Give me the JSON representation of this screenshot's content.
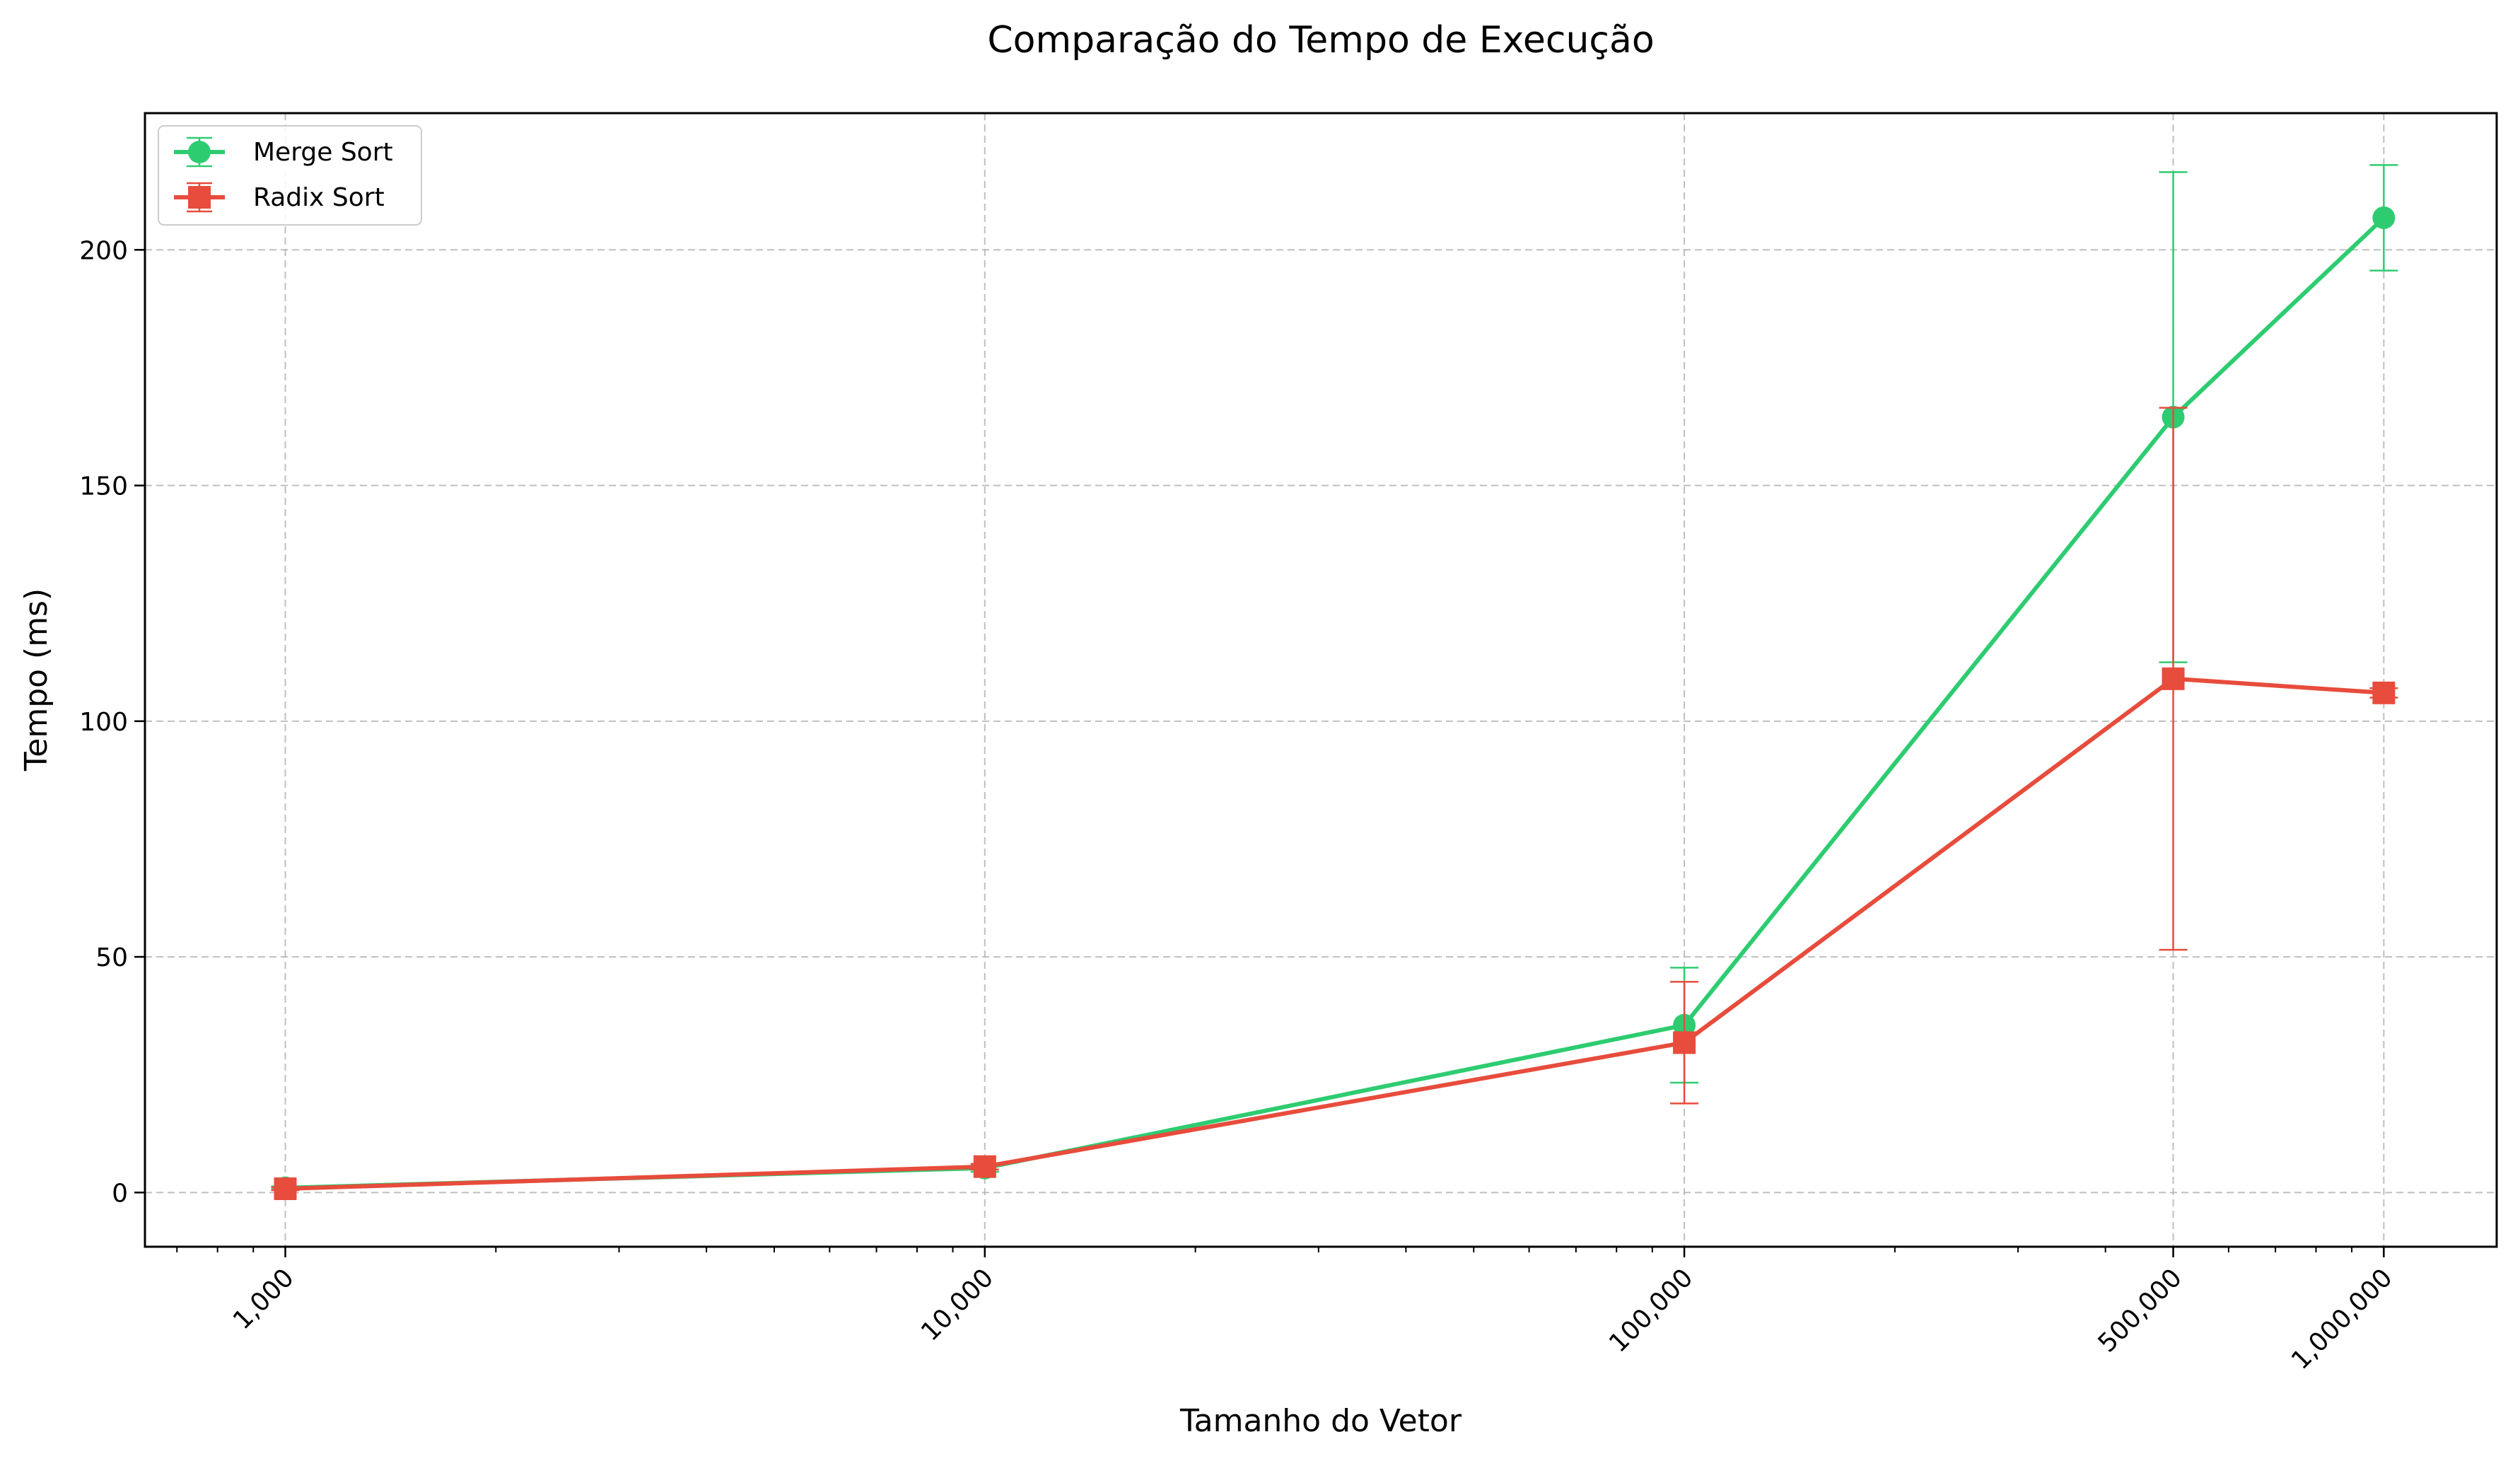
{
  "chart_data": {
    "type": "line",
    "title": "Comparação do Tempo de Execução",
    "xlabel": "Tamanho do Vetor",
    "ylabel": "Tempo (ms)",
    "x_scale": "log",
    "x": [
      1000,
      10000,
      100000,
      500000,
      1000000
    ],
    "x_tick_labels": [
      "1,000",
      "10,000",
      "100,000",
      "500,000",
      "1,000,000"
    ],
    "y_ticks": [
      0,
      50,
      100,
      150,
      200
    ],
    "y_tick_labels": [
      "0",
      "50",
      "100",
      "150",
      "200"
    ],
    "xlim": [
      630,
      1450000
    ],
    "ylim": [
      -11.5,
      229
    ],
    "grid": true,
    "legend_position": "top-left",
    "series": [
      {
        "name": "Merge Sort",
        "color": "#2ecc71",
        "marker": "circle",
        "values": [
          1.0,
          5.2,
          35.5,
          164.5,
          206.8
        ],
        "error": [
          0.3,
          0.8,
          12.2,
          52.0,
          11.2
        ]
      },
      {
        "name": "Radix Sort",
        "color": "#e74c3c",
        "marker": "square",
        "values": [
          0.8,
          5.5,
          31.8,
          109.0,
          106.0
        ],
        "error": [
          0.3,
          0.6,
          12.9,
          57.5,
          1.0
        ]
      }
    ]
  }
}
